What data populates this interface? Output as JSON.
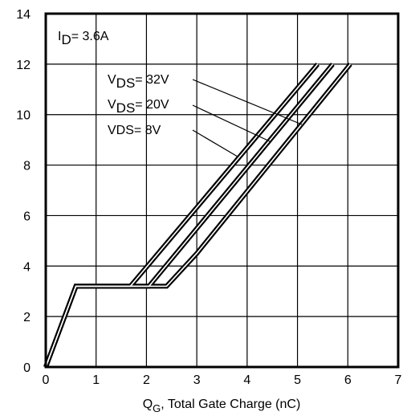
{
  "chart_data": {
    "type": "line",
    "xlim": [
      0,
      7
    ],
    "ylim": [
      0,
      14
    ],
    "x_ticks": [
      "0",
      "1",
      "2",
      "3",
      "4",
      "5",
      "6",
      "7"
    ],
    "y_ticks": [
      "0",
      "2",
      "4",
      "6",
      "8",
      "10",
      "12",
      "14"
    ],
    "grid": true,
    "xlabel": {
      "main": "Q",
      "sub": "G",
      "rest": ",  Total Gate Charge (nC)"
    },
    "ylabel": "",
    "annotations": {
      "id": {
        "main": "I",
        "sub": "D",
        "rest": "= 3.6A"
      },
      "vds32": {
        "main": "V",
        "sub": "DS",
        "rest": "= 32V"
      },
      "vds20": {
        "main": "V",
        "sub": "DS",
        "rest": "= 20V"
      },
      "vds8": {
        "text": "VDS= 8V"
      }
    },
    "series": [
      {
        "key": "vds32",
        "x": [
          0,
          0.6,
          1.68,
          5.4
        ],
        "y": [
          0,
          3.2,
          3.2,
          12
        ]
      },
      {
        "key": "vds20",
        "x": [
          0,
          0.6,
          2.05,
          5.7
        ],
        "y": [
          0,
          3.2,
          3.2,
          12
        ]
      },
      {
        "key": "vds8",
        "x": [
          0,
          0.6,
          2.4,
          3.0,
          6.05
        ],
        "y": [
          0,
          3.2,
          3.2,
          4.5,
          12
        ]
      }
    ]
  }
}
